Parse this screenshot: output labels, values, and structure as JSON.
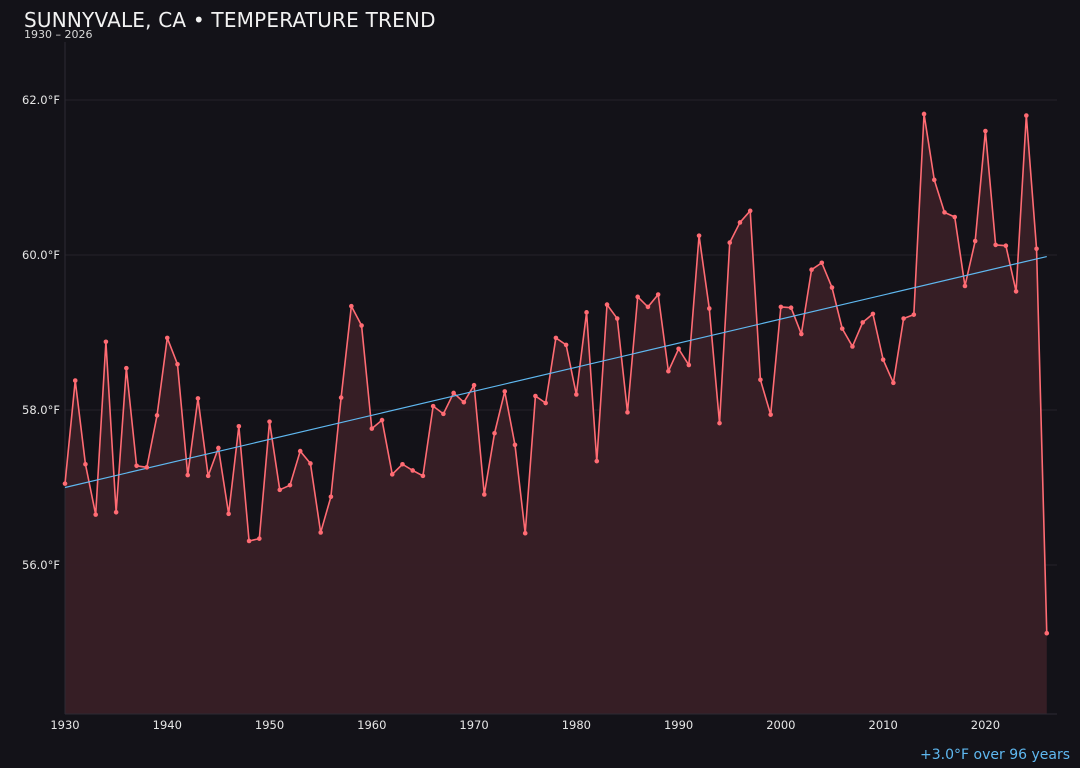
{
  "header": {
    "title": "SUNNYVALE, CA • TEMPERATURE TREND",
    "subtitle": "1930 – 2026"
  },
  "footer": {
    "trend_note": "+3.0°F over 96 years"
  },
  "colors": {
    "background": "#131218",
    "series_line": "#ff6b73",
    "series_fill": "#3a2027",
    "trend_line": "#5fb8f0",
    "grid": "#24222a",
    "axis": "#2c2a33"
  },
  "chart_data": {
    "type": "line",
    "title": "SUNNYVALE, CA • TEMPERATURE TREND",
    "subtitle": "1930 – 2026",
    "xlabel": "",
    "ylabel": "",
    "xlim": [
      1930,
      2027
    ],
    "ylim": [
      54.2,
      63.5
    ],
    "grid": true,
    "x_ticks": [
      1930,
      1940,
      1950,
      1960,
      1970,
      1980,
      1990,
      2000,
      2010,
      2020
    ],
    "x_tick_labels": [
      "1930",
      "1940",
      "1950",
      "1960",
      "1970",
      "1980",
      "1990",
      "2000",
      "2010",
      "2020"
    ],
    "y_ticks": [
      56,
      58,
      60,
      62
    ],
    "y_tick_labels": [
      "56.0°F",
      "58.0°F",
      "60.0°F",
      "62.0°F"
    ],
    "series": [
      {
        "style": "line-with-markers-and-area-fill",
        "x": [
          1930,
          1931,
          1932,
          1933,
          1934,
          1935,
          1936,
          1937,
          1938,
          1939,
          1940,
          1941,
          1942,
          1943,
          1944,
          1945,
          1946,
          1947,
          1948,
          1949,
          1950,
          1951,
          1952,
          1953,
          1954,
          1955,
          1956,
          1957,
          1958,
          1959,
          1960,
          1961,
          1962,
          1963,
          1964,
          1965,
          1966,
          1967,
          1968,
          1969,
          1970,
          1971,
          1972,
          1973,
          1974,
          1975,
          1976,
          1977,
          1978,
          1979,
          1980,
          1981,
          1982,
          1983,
          1984,
          1985,
          1986,
          1987,
          1988,
          1989,
          1990,
          1991,
          1992,
          1993,
          1994,
          1995,
          1996,
          1997,
          1998,
          1999,
          2000,
          2001,
          2002,
          2003,
          2004,
          2005,
          2006,
          2007,
          2008,
          2009,
          2010,
          2011,
          2012,
          2013,
          2014,
          2015,
          2016,
          2017,
          2018,
          2019,
          2020,
          2021,
          2022,
          2023,
          2024,
          2025,
          2026
        ],
        "values": [
          57.05,
          58.38,
          57.3,
          56.65,
          58.88,
          56.68,
          58.54,
          57.28,
          57.26,
          57.93,
          58.93,
          58.59,
          57.16,
          58.15,
          57.15,
          57.51,
          56.66,
          57.79,
          56.31,
          56.34,
          57.85,
          56.97,
          57.03,
          57.47,
          57.31,
          56.42,
          56.88,
          58.16,
          59.34,
          59.09,
          57.76,
          57.87,
          57.17,
          57.3,
          57.22,
          57.15,
          58.05,
          57.95,
          58.22,
          58.1,
          58.32,
          56.91,
          57.7,
          58.24,
          57.55,
          56.41,
          58.18,
          58.09,
          58.93,
          58.84,
          58.2,
          59.26,
          57.34,
          59.36,
          59.18,
          57.97,
          59.46,
          59.33,
          59.49,
          58.5,
          58.79,
          58.58,
          60.25,
          59.31,
          57.83,
          60.16,
          60.42,
          60.57,
          58.39,
          57.94,
          59.33,
          59.32,
          58.98,
          59.81,
          59.9,
          59.58,
          59.05,
          58.82,
          59.13,
          59.24,
          58.65,
          58.35,
          59.18,
          59.23,
          61.82,
          60.97,
          60.55,
          60.49,
          59.6,
          60.18,
          61.6,
          60.13,
          60.12,
          59.53,
          61.8,
          60.08,
          55.12
        ]
      }
    ],
    "trend_line": {
      "x": [
        1930,
        2026
      ],
      "y": [
        57.0,
        59.98
      ]
    },
    "annotations": [
      "+3.0°F over 96 years"
    ]
  }
}
